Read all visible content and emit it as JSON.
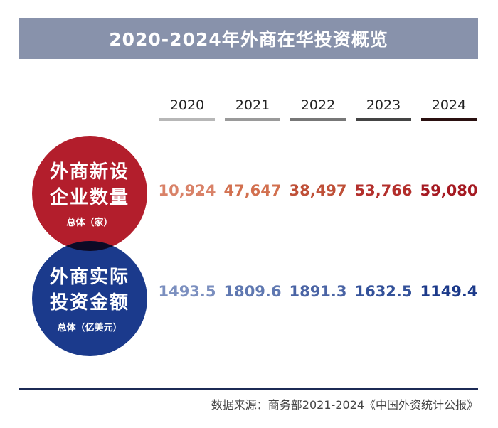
{
  "chart_data": {
    "type": "table",
    "title": "2020-2024年外商在华投资概览",
    "years": [
      "2020",
      "2021",
      "2022",
      "2023",
      "2024"
    ],
    "rows": [
      {
        "label_lines": [
          "外商新设",
          "企业数量"
        ],
        "unit": "总体（家）",
        "values": [
          "10,924",
          "47,647",
          "38,497",
          "53,766",
          "59,080"
        ],
        "colors": [
          "#d98268",
          "#d2704f",
          "#bf5038",
          "#b32f2c",
          "#a51a22"
        ]
      },
      {
        "label_lines": [
          "外商实际",
          "投资金额"
        ],
        "unit": "总体（亿美元）",
        "values": [
          "1493.5",
          "1809.6",
          "1891.3",
          "1632.5",
          "1149.4"
        ],
        "colors": [
          "#7b8fbf",
          "#5f78b1",
          "#4a64a5",
          "#34529a",
          "#1c3a8a"
        ]
      }
    ],
    "year_underline_colors": [
      "#b7b7b7",
      "#9a9a9a",
      "#777777",
      "#444444",
      "#2a1010"
    ]
  },
  "source": "数据来源：商务部2021-2024《中国外资统计公报》",
  "colors": {
    "banner": "#8892ab",
    "circle_red": "#b31e2c",
    "circle_blue": "#1b3a8c",
    "overlap": "#0d0a25"
  }
}
